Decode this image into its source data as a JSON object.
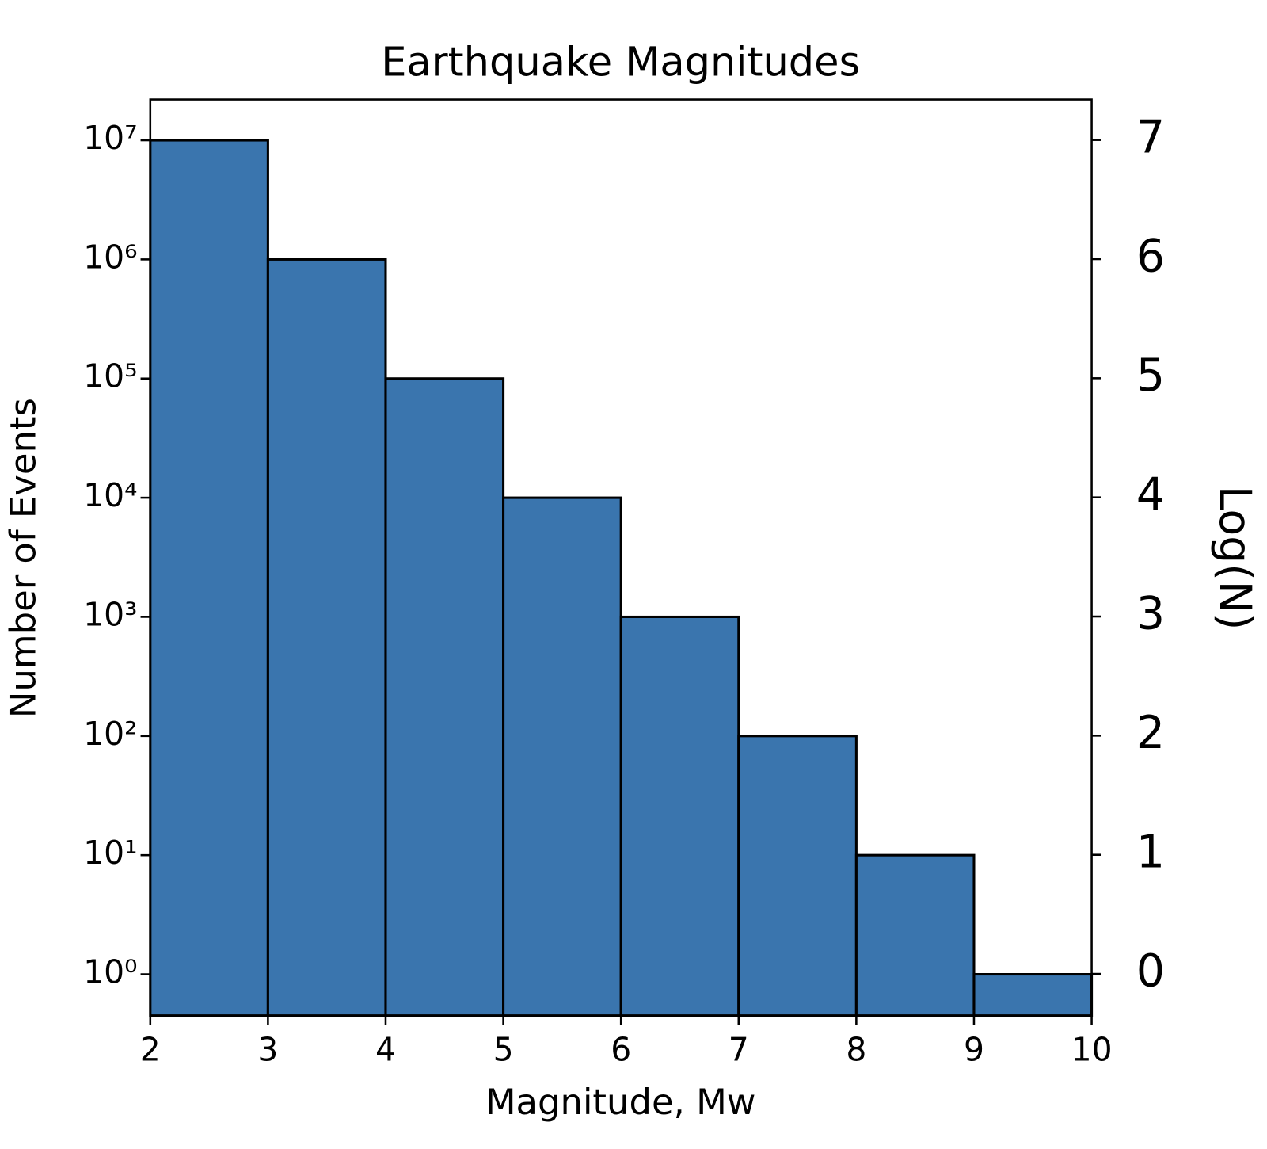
{
  "chart_data": {
    "type": "histogram",
    "title": "Earthquake Magnitudes",
    "xlabel": "Magnitude, Mw",
    "ylabel": "Number of Events",
    "y2label": "Log(N)",
    "bins": [
      2,
      3,
      4,
      5,
      6,
      7,
      8,
      9,
      10
    ],
    "counts": [
      10000000,
      1000000,
      100000,
      10000,
      1000,
      100,
      10,
      1
    ],
    "color": "#3a75ae",
    "edgecolor": "#000000",
    "xlim": [
      2,
      10
    ],
    "xticks": [
      2,
      3,
      4,
      5,
      6,
      7,
      8,
      9,
      10
    ],
    "ylim": [
      0.45,
      22000000
    ],
    "yscale": "log",
    "yticks": [
      {
        "value": 1,
        "label": "10⁰"
      },
      {
        "value": 10,
        "label": "10¹"
      },
      {
        "value": 100,
        "label": "10²"
      },
      {
        "value": 1000,
        "label": "10³"
      },
      {
        "value": 10000,
        "label": "10⁴"
      },
      {
        "value": 100000,
        "label": "10⁵"
      },
      {
        "value": 1000000,
        "label": "10⁶"
      },
      {
        "value": 10000000,
        "label": "10⁷"
      }
    ],
    "y2lim": [
      -0.35,
      7.34
    ],
    "y2ticks": [
      0,
      1,
      2,
      3,
      4,
      5,
      6,
      7
    ]
  }
}
